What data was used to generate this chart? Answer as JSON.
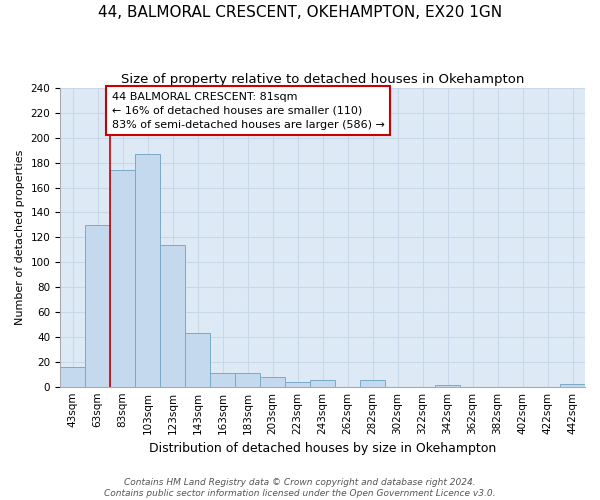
{
  "title": "44, BALMORAL CRESCENT, OKEHAMPTON, EX20 1GN",
  "subtitle": "Size of property relative to detached houses in Okehampton",
  "xlabel": "Distribution of detached houses by size in Okehampton",
  "ylabel": "Number of detached properties",
  "footer_line1": "Contains HM Land Registry data © Crown copyright and database right 2024.",
  "footer_line2": "Contains public sector information licensed under the Open Government Licence v3.0.",
  "bin_labels": [
    "43sqm",
    "63sqm",
    "83sqm",
    "103sqm",
    "123sqm",
    "143sqm",
    "163sqm",
    "183sqm",
    "203sqm",
    "223sqm",
    "243sqm",
    "262sqm",
    "282sqm",
    "302sqm",
    "322sqm",
    "342sqm",
    "362sqm",
    "382sqm",
    "402sqm",
    "422sqm",
    "442sqm"
  ],
  "bar_heights": [
    16,
    130,
    174,
    187,
    114,
    43,
    11,
    11,
    8,
    4,
    5,
    0,
    5,
    0,
    0,
    1,
    0,
    0,
    0,
    0,
    2
  ],
  "bar_color": "#c5d9ee",
  "bar_edge_color": "#7aaac8",
  "vline_x": 2,
  "vline_color": "#cc0000",
  "annotation_text": "44 BALMORAL CRESCENT: 81sqm\n← 16% of detached houses are smaller (110)\n83% of semi-detached houses are larger (586) →",
  "annotation_box_color": "#ffffff",
  "annotation_box_edge_color": "#cc0000",
  "ylim": [
    0,
    240
  ],
  "yticks": [
    0,
    20,
    40,
    60,
    80,
    100,
    120,
    140,
    160,
    180,
    200,
    220,
    240
  ],
  "grid_color": "#c8d8e8",
  "background_color": "#ddeaf5",
  "title_fontsize": 11,
  "subtitle_fontsize": 9.5,
  "xlabel_fontsize": 9,
  "ylabel_fontsize": 8,
  "tick_fontsize": 7.5,
  "footer_fontsize": 6.5
}
